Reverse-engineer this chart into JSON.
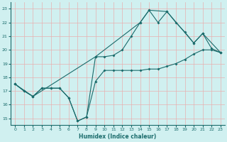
{
  "xlabel": "Humidex (Indice chaleur)",
  "xlim": [
    -0.5,
    23.5
  ],
  "ylim": [
    14.5,
    23.5
  ],
  "background_color": "#d0f0f0",
  "grid_color": "#e8b0b0",
  "line_color": "#1a6b6b",
  "xticks": [
    0,
    1,
    2,
    3,
    4,
    5,
    6,
    7,
    8,
    9,
    10,
    11,
    12,
    13,
    14,
    15,
    16,
    17,
    18,
    19,
    20,
    21,
    22,
    23
  ],
  "yticks": [
    15,
    16,
    17,
    18,
    19,
    20,
    21,
    22,
    23
  ],
  "line1_x": [
    0,
    1,
    2,
    3,
    4,
    5,
    6,
    7,
    8,
    9,
    10,
    11,
    12,
    13,
    14,
    15,
    16,
    17,
    18,
    19,
    20,
    21,
    22,
    23
  ],
  "line1_y": [
    17.5,
    17.0,
    16.6,
    17.2,
    17.2,
    17.2,
    16.5,
    14.8,
    15.1,
    17.7,
    18.5,
    18.5,
    18.5,
    18.5,
    18.5,
    18.6,
    18.6,
    18.8,
    19.0,
    19.3,
    19.7,
    20.0,
    20.0,
    19.8
  ],
  "line2_x": [
    0,
    1,
    2,
    3,
    4,
    5,
    6,
    7,
    8,
    9,
    10,
    11,
    12,
    13,
    14,
    15,
    16,
    17,
    18,
    19,
    20,
    21,
    22,
    23
  ],
  "line2_y": [
    17.5,
    17.0,
    16.6,
    17.2,
    17.2,
    17.2,
    16.5,
    14.8,
    15.1,
    19.5,
    19.5,
    19.6,
    20.0,
    21.0,
    22.0,
    22.9,
    22.0,
    22.8,
    22.0,
    21.3,
    20.5,
    21.2,
    20.1,
    19.8
  ],
  "line3_x": [
    0,
    2,
    9,
    14,
    15,
    17,
    20,
    21,
    23
  ],
  "line3_y": [
    17.5,
    16.6,
    19.5,
    22.0,
    22.9,
    22.8,
    20.5,
    21.2,
    19.8
  ]
}
